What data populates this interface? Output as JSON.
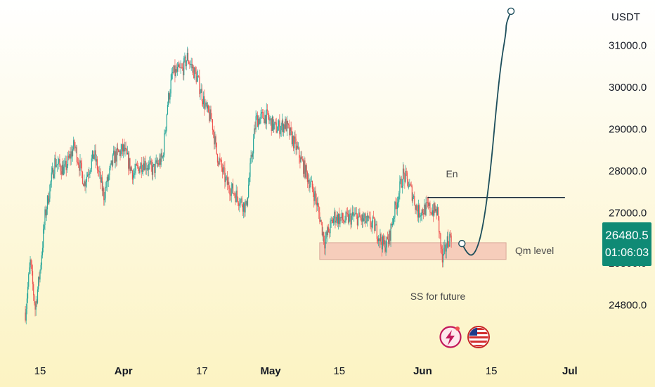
{
  "chart_data": {
    "type": "candlestick",
    "currency_label": "USDT",
    "y_ticks": [
      24800,
      25800,
      27000,
      28000,
      29000,
      30000,
      31000
    ],
    "y_tick_labels": [
      "24800.0",
      "25800.0",
      "27000.0",
      "28000.0",
      "29000.0",
      "30000.0",
      "31000.0"
    ],
    "ylim": [
      24300,
      31800
    ],
    "x_tick_labels": [
      {
        "label": "15",
        "bold": false,
        "date": "2023-03-15"
      },
      {
        "label": "Apr",
        "bold": true,
        "date": "2023-04-01"
      },
      {
        "label": "17",
        "bold": false,
        "date": "2023-04-17"
      },
      {
        "label": "May",
        "bold": true,
        "date": "2023-05-01"
      },
      {
        "label": "15",
        "bold": false,
        "date": "2023-05-15"
      },
      {
        "label": "Jun",
        "bold": true,
        "date": "2023-06-01"
      },
      {
        "label": "15",
        "bold": false,
        "date": "2023-06-15"
      },
      {
        "label": "Jul",
        "bold": true,
        "date": "2023-07-01"
      }
    ],
    "price_path": [
      [
        "2023-03-12",
        24600
      ],
      [
        "2023-03-13",
        25800
      ],
      [
        "2023-03-14",
        24700
      ],
      [
        "2023-03-15",
        25600
      ],
      [
        "2023-03-16",
        26900
      ],
      [
        "2023-03-17",
        27600
      ],
      [
        "2023-03-18",
        28200
      ],
      [
        "2023-03-20",
        28000
      ],
      [
        "2023-03-22",
        28600
      ],
      [
        "2023-03-24",
        27700
      ],
      [
        "2023-03-26",
        28400
      ],
      [
        "2023-03-28",
        27400
      ],
      [
        "2023-03-30",
        28300
      ],
      [
        "2023-04-01",
        28500
      ],
      [
        "2023-04-03",
        27900
      ],
      [
        "2023-04-05",
        28200
      ],
      [
        "2023-04-07",
        28000
      ],
      [
        "2023-04-09",
        28300
      ],
      [
        "2023-04-10",
        29600
      ],
      [
        "2023-04-11",
        30300
      ],
      [
        "2023-04-13",
        30400
      ],
      [
        "2023-04-14",
        30700
      ],
      [
        "2023-04-16",
        30200
      ],
      [
        "2023-04-18",
        29400
      ],
      [
        "2023-04-19",
        29200
      ],
      [
        "2023-04-20",
        28400
      ],
      [
        "2023-04-22",
        27700
      ],
      [
        "2023-04-24",
        27400
      ],
      [
        "2023-04-26",
        27100
      ],
      [
        "2023-04-27",
        28200
      ],
      [
        "2023-04-28",
        29200
      ],
      [
        "2023-04-30",
        29300
      ],
      [
        "2023-05-02",
        29000
      ],
      [
        "2023-05-04",
        29100
      ],
      [
        "2023-05-06",
        28600
      ],
      [
        "2023-05-08",
        28000
      ],
      [
        "2023-05-10",
        27400
      ],
      [
        "2023-05-11",
        26900
      ],
      [
        "2023-05-12",
        26300
      ],
      [
        "2023-05-14",
        26900
      ],
      [
        "2023-05-16",
        26800
      ],
      [
        "2023-05-18",
        26900
      ],
      [
        "2023-05-20",
        26800
      ],
      [
        "2023-05-22",
        26700
      ],
      [
        "2023-05-24",
        26200
      ],
      [
        "2023-05-25",
        26300
      ],
      [
        "2023-05-26",
        26900
      ],
      [
        "2023-05-28",
        27900
      ],
      [
        "2023-05-29",
        27700
      ],
      [
        "2023-05-30",
        27400
      ],
      [
        "2023-05-31",
        27000
      ],
      [
        "2023-06-02",
        27100
      ],
      [
        "2023-06-04",
        27000
      ],
      [
        "2023-06-05",
        25800
      ],
      [
        "2023-06-06",
        26300
      ],
      [
        "2023-06-07",
        26500
      ]
    ],
    "price_range": {
      "low": 24600,
      "high": 31050
    },
    "current_price": "26480.5",
    "countdown": "01:06:03",
    "zone": {
      "label": "Qm level",
      "x_start": "2023-05-11",
      "x_end": "2023-06-18",
      "y_low": 25870,
      "y_high": 26270
    },
    "entry_line": {
      "label": "En",
      "x_start": "2023-06-02",
      "x_end": "2023-06-30",
      "y": 27350
    },
    "ss_label": "SS for future",
    "projection": [
      [
        "2023-06-09",
        26250
      ],
      [
        "2023-06-10",
        26030
      ],
      [
        "2023-06-11",
        25950
      ],
      [
        "2023-06-12",
        26100
      ],
      [
        "2023-06-13",
        26500
      ],
      [
        "2023-06-14",
        27200
      ],
      [
        "2023-06-15",
        28200
      ],
      [
        "2023-06-16",
        29500
      ],
      [
        "2023-06-17",
        30600
      ],
      [
        "2023-06-18",
        31300
      ],
      [
        "2023-06-18",
        31500
      ],
      [
        "2023-06-19",
        31800
      ]
    ]
  },
  "colors": {
    "bg_top": "#ffffff",
    "bg_bottom": "#fcf3c2",
    "up": "#26a69a",
    "down": "#ef5350",
    "zone_fill": "#f5c6b6",
    "zone_stroke": "#d9a899",
    "line": "#1a2a3a",
    "projection": "#1d4e5b",
    "badge": "#0f8a75"
  },
  "icons": [
    "flash-icon",
    "us-flag-icon"
  ]
}
